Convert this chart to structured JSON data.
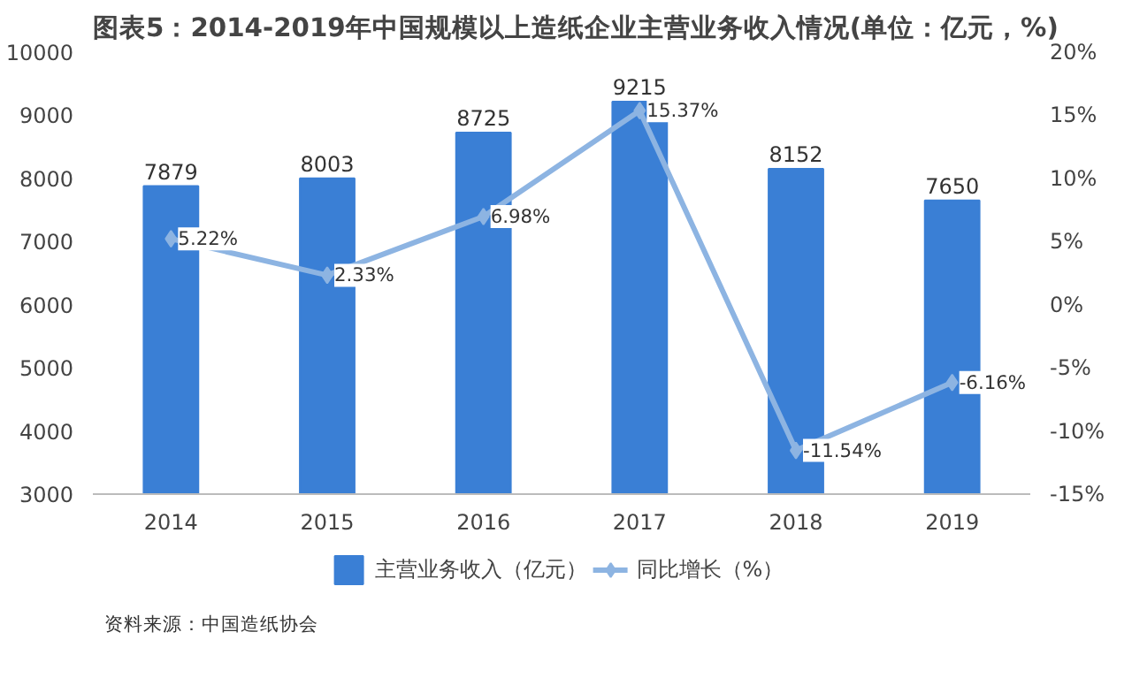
{
  "chart_data": {
    "type": "bar",
    "title": "图表5：2014-2019年中国规模以上造纸企业主营业务收入情况(单位：亿元，%)",
    "categories": [
      "2014",
      "2015",
      "2016",
      "2017",
      "2018",
      "2019"
    ],
    "series": [
      {
        "name": "主营业务收入（亿元）",
        "type": "bar",
        "color": "#3a7fd5",
        "values": [
          7879,
          8003,
          8725,
          9215,
          8152,
          7650
        ],
        "value_labels": [
          "7879",
          "8003",
          "8725",
          "9215",
          "8152",
          "7650"
        ]
      },
      {
        "name": "同比增长（%）",
        "type": "line",
        "axis": "y2",
        "color": "#8db4e2",
        "marker": "diamond",
        "values": [
          5.22,
          2.33,
          6.98,
          15.37,
          -11.54,
          -6.16
        ],
        "value_labels": [
          "5.22%",
          "2.33%",
          "6.98%",
          "15.37%",
          "-11.54%",
          "-6.16%"
        ]
      }
    ],
    "ylim": [
      3000,
      10000
    ],
    "yticks": [
      3000,
      4000,
      5000,
      6000,
      7000,
      8000,
      9000,
      10000
    ],
    "y2lim": [
      -15,
      20
    ],
    "y2ticks": [
      {
        "value": -15,
        "label": "-15%"
      },
      {
        "value": -10,
        "label": "-10%"
      },
      {
        "value": -5,
        "label": "-5%"
      },
      {
        "value": 0,
        "label": "0%"
      },
      {
        "value": 5,
        "label": "5%"
      },
      {
        "value": 10,
        "label": "10%"
      },
      {
        "value": 15,
        "label": "15%"
      },
      {
        "value": 20,
        "label": "20%"
      }
    ],
    "grid": false,
    "legend": "bottom",
    "annotations": [
      "资料来源：中国造纸协会"
    ]
  }
}
